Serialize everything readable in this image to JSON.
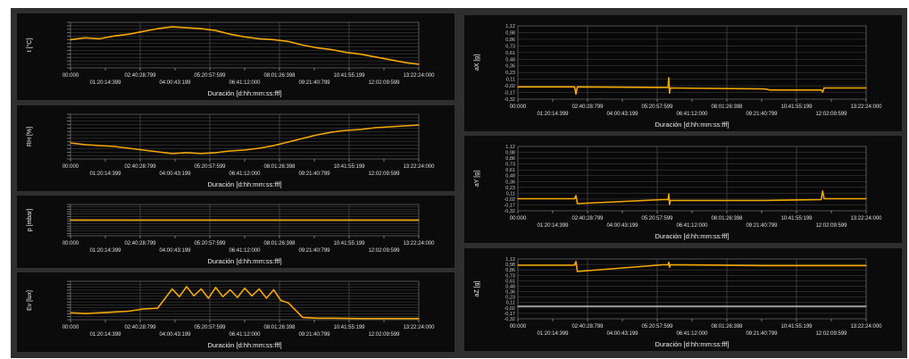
{
  "chart_data": [
    {
      "id": "t",
      "type": "line",
      "ylabel": "t [°C]",
      "xlabel": "Duración [d:hh:mm:ss:fff]",
      "x_ticks": [
        "00:000",
        "01:20:14:399",
        "02:40:28:799",
        "04:00:43:199",
        "05:20:57:599",
        "06:41:12:000",
        "08:01:26:398",
        "09:21:40:799",
        "10:41:55:199",
        "12:02:09:599",
        "13:22:24:000"
      ],
      "y_ticks": [],
      "ylim": [
        0,
        1
      ],
      "line_color": "#f5a800",
      "grid": true,
      "series": [
        {
          "x": [
            0,
            1,
            2,
            3,
            4,
            5,
            6,
            7,
            8,
            9,
            10,
            11,
            12,
            13,
            14,
            15,
            16,
            17,
            18,
            19,
            20,
            21,
            22,
            23,
            24
          ],
          "y": [
            0.62,
            0.66,
            0.64,
            0.7,
            0.74,
            0.8,
            0.86,
            0.9,
            0.88,
            0.86,
            0.82,
            0.74,
            0.68,
            0.64,
            0.62,
            0.58,
            0.5,
            0.44,
            0.4,
            0.34,
            0.3,
            0.24,
            0.18,
            0.12,
            0.08
          ]
        }
      ]
    },
    {
      "id": "rh",
      "type": "line",
      "ylabel": "RH [%]",
      "xlabel": "Duración [d:hh:mm:ss:fff]",
      "x_ticks": [
        "00:000",
        "01:20:14:399",
        "02:40:28:799",
        "04:00:43:199",
        "05:20:57:599",
        "06:41:12:000",
        "08:01:26:398",
        "09:21:40:799",
        "10:41:55:199",
        "12:02:09:599",
        "13:22:24:000"
      ],
      "y_ticks": [],
      "ylim": [
        0,
        1
      ],
      "line_color": "#f5a800",
      "grid": true,
      "series": [
        {
          "x": [
            0,
            1,
            2,
            3,
            4,
            5,
            6,
            7,
            8,
            9,
            10,
            11,
            12,
            13,
            14,
            15,
            16,
            17,
            18,
            19,
            20,
            21,
            22,
            23,
            24
          ],
          "y": [
            0.36,
            0.32,
            0.3,
            0.28,
            0.24,
            0.2,
            0.16,
            0.12,
            0.14,
            0.12,
            0.14,
            0.18,
            0.2,
            0.24,
            0.3,
            0.38,
            0.46,
            0.54,
            0.6,
            0.64,
            0.66,
            0.7,
            0.72,
            0.74,
            0.76
          ]
        }
      ]
    },
    {
      "id": "p",
      "type": "line",
      "ylabel": "p [mbar]",
      "xlabel": "Duración [d:hh:mm:ss:fff]",
      "x_ticks": [
        "00:000",
        "01:20:14:399",
        "02:40:28:799",
        "04:00:43:199",
        "05:20:57:599",
        "06:41:12:000",
        "08:01:26:398",
        "09:21:40:799",
        "10:41:55:199",
        "12:02:09:599",
        "13:22:24:000"
      ],
      "y_ticks": [],
      "ylim": [
        0,
        1
      ],
      "line_color": "#f5a800",
      "grid": true,
      "series": [
        {
          "x": [
            0,
            24
          ],
          "y": [
            0.5,
            0.5
          ]
        }
      ]
    },
    {
      "id": "ev",
      "type": "line",
      "ylabel": "Ev [lux]",
      "xlabel": "Duración [d:hh:mm:ss:fff]",
      "x_ticks": [
        "00:000",
        "01:20:14:399",
        "02:40:28:799",
        "04:00:43:199",
        "05:20:57:599",
        "06:41:12:000",
        "08:01:26:398",
        "09:21:40:799",
        "10:41:55:199",
        "12:02:09:599",
        "13:22:24:000"
      ],
      "y_ticks": [],
      "ylim": [
        0,
        1
      ],
      "line_color": "#f5a800",
      "grid": true,
      "series": [
        {
          "x": [
            0,
            1,
            2,
            3,
            4,
            5,
            6,
            7,
            7.5,
            8,
            8.5,
            9,
            9.5,
            10,
            10.5,
            11,
            11.5,
            12,
            12.5,
            13,
            13.5,
            14,
            14.5,
            15,
            16,
            17,
            18,
            20,
            22,
            24
          ],
          "y": [
            0.18,
            0.16,
            0.18,
            0.2,
            0.22,
            0.28,
            0.3,
            0.8,
            0.6,
            0.86,
            0.62,
            0.8,
            0.56,
            0.84,
            0.6,
            0.78,
            0.58,
            0.82,
            0.62,
            0.8,
            0.56,
            0.78,
            0.5,
            0.44,
            0.06,
            0.04,
            0.04,
            0.03,
            0.03,
            0.03
          ]
        }
      ]
    },
    {
      "id": "ax",
      "type": "line",
      "ylabel": "aX [g]",
      "xlabel": "Duración [d:hh:mm:ss:fff]",
      "x_ticks": [
        "00:000",
        "01:20:14:399",
        "02:40:28:799",
        "04:00:43:199",
        "05:20:57:599",
        "06:41:12:000",
        "08:01:26:398",
        "09:21:40:799",
        "10:41:55:199",
        "12:02:09:599",
        "13:22:24:000"
      ],
      "y_ticks": [
        "1,12",
        "0,98",
        "0,86",
        "0,73",
        "0,61",
        "0,48",
        "0,36",
        "0,23",
        "0,11",
        "-0,02",
        "-0,17",
        "-0,32"
      ],
      "ylim": [
        -0.32,
        1.12
      ],
      "line_color": "#f5a800",
      "grid": true,
      "series": [
        {
          "x": [
            0,
            3.9,
            4.0,
            4.1,
            10,
            10.35,
            10.4,
            10.45,
            10.5,
            17,
            17.4,
            20.9,
            21.0,
            21.1,
            24
          ],
          "y": [
            -0.08,
            -0.08,
            -0.22,
            -0.08,
            -0.09,
            -0.09,
            0.1,
            -0.2,
            -0.1,
            -0.12,
            -0.14,
            -0.14,
            -0.18,
            -0.1,
            -0.1
          ]
        }
      ]
    },
    {
      "id": "ay",
      "type": "line",
      "ylabel": "aY [g]",
      "xlabel": "Duración [d:hh:mm:ss:fff]",
      "x_ticks": [
        "00:000",
        "01:20:14:399",
        "02:40:28:799",
        "04:00:43:199",
        "05:20:57:599",
        "06:41:12:000",
        "08:01:26:398",
        "09:21:40:799",
        "10:41:55:199",
        "12:02:09:599",
        "13:22:24:000"
      ],
      "y_ticks": [
        "1,12",
        "0,98",
        "0,86",
        "0,73",
        "0,61",
        "0,48",
        "0,36",
        "0,23",
        "0,11",
        "-0,02",
        "-0,17",
        "-0,32"
      ],
      "ylim": [
        -0.32,
        1.12
      ],
      "line_color": "#f5a800",
      "grid": true,
      "series": [
        {
          "x": [
            0,
            3.9,
            4.0,
            4.1,
            10,
            10.35,
            10.4,
            10.45,
            10.5,
            17,
            20.9,
            21.0,
            21.1,
            24
          ],
          "y": [
            -0.05,
            -0.05,
            0.02,
            -0.16,
            -0.07,
            -0.07,
            0.05,
            -0.18,
            -0.09,
            -0.09,
            -0.07,
            0.12,
            -0.05,
            -0.05
          ]
        }
      ]
    },
    {
      "id": "az",
      "type": "line",
      "ylabel": "aZ [g]",
      "xlabel": "Duración [d:hh:mm:ss:fff]",
      "x_ticks": [
        "00:000",
        "01:20:14:399",
        "02:40:28:799",
        "04:00:43:199",
        "05:20:57:599",
        "06:41:12:000",
        "08:01:26:398",
        "09:21:40:799",
        "10:41:55:199",
        "12:02:09:599",
        "13:22:24:000"
      ],
      "y_ticks": [
        "1,12",
        "0,98",
        "0,86",
        "0,73",
        "0,61",
        "0,48",
        "0,36",
        "0,23",
        "0,11",
        "-0,02",
        "-0,17",
        "-0,32"
      ],
      "ylim": [
        -0.32,
        1.12
      ],
      "line_color": "#f5a800",
      "zero_line_color": "#bdbdbd",
      "grid": true,
      "series": [
        {
          "x": [
            0,
            3.9,
            4.0,
            4.1,
            10,
            10.35,
            10.4,
            10.45,
            10.5,
            17,
            24
          ],
          "y": [
            0.97,
            0.97,
            1.06,
            0.82,
            0.98,
            0.98,
            1.04,
            0.92,
            0.98,
            0.96,
            0.96
          ]
        },
        {
          "x": [
            0,
            24
          ],
          "y": [
            -0.02,
            -0.02
          ]
        }
      ]
    }
  ]
}
